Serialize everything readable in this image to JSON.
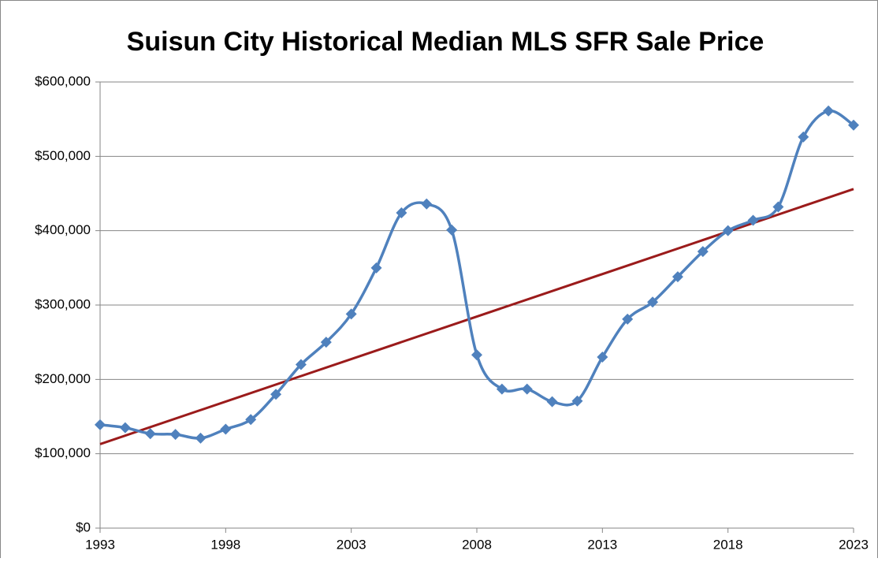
{
  "chart_data": {
    "type": "line",
    "title": "Suisun City Historical Median MLS SFR Sale Price",
    "x": [
      1993,
      1994,
      1995,
      1996,
      1997,
      1998,
      1999,
      2000,
      2001,
      2002,
      2003,
      2004,
      2005,
      2006,
      2007,
      2008,
      2009,
      2010,
      2011,
      2012,
      2013,
      2014,
      2015,
      2016,
      2017,
      2018,
      2019,
      2020,
      2021,
      2022,
      2023
    ],
    "series": [
      {
        "color": "#4f81bd",
        "values": [
          139000,
          135000,
          127000,
          126000,
          121000,
          133000,
          146000,
          180000,
          220000,
          250000,
          288000,
          350000,
          424000,
          436000,
          401000,
          233000,
          187000,
          187000,
          170000,
          171000,
          230000,
          281000,
          304000,
          338000,
          372000,
          400000,
          414000,
          432000,
          526000,
          561000,
          542000
        ]
      }
    ],
    "trendline": {
      "color": "#9b1b1b",
      "x": [
        1993,
        2023
      ],
      "values": [
        113000,
        456000
      ]
    },
    "xlim": [
      1993,
      2023
    ],
    "xticks": [
      1993,
      1998,
      2003,
      2008,
      2013,
      2018,
      2023
    ],
    "ylim": [
      0,
      600000
    ],
    "yticks": [
      {
        "value": 0,
        "label": "$0"
      },
      {
        "value": 100000,
        "label": "$100,000"
      },
      {
        "value": 200000,
        "label": "$200,000"
      },
      {
        "value": 300000,
        "label": "$300,000"
      },
      {
        "value": 400000,
        "label": "$400,000"
      },
      {
        "value": 500000,
        "label": "$500,000"
      },
      {
        "value": 600000,
        "label": "$600,000"
      }
    ],
    "grid": true
  }
}
